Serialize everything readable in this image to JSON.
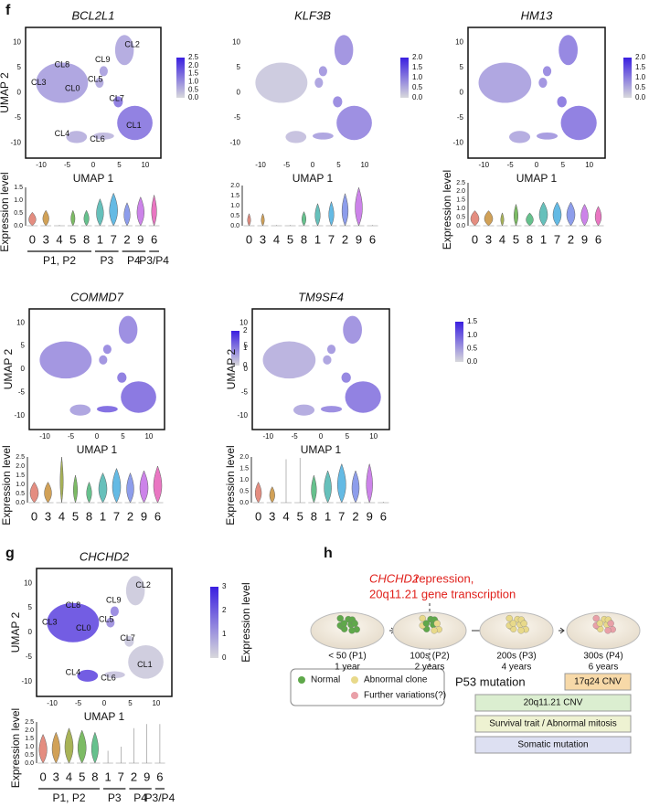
{
  "f": {
    "label": "f",
    "umaps": [
      {
        "gene": "BCL2L1",
        "xlabel": "UMAP 1",
        "ylabel": "UMAP 2",
        "xticks": [
          "-10",
          "-5",
          "0",
          "5",
          "10"
        ],
        "yticks": [
          "10",
          "5",
          "0",
          "-5",
          "-10"
        ],
        "colorbar": [
          "2.5",
          "2.0",
          "1.5",
          "1.0",
          "0.5",
          "0.0"
        ],
        "clusters": [
          "CL2",
          "CL8",
          "CL9",
          "CL3",
          "CL5",
          "CL0",
          "CL7",
          "CL4",
          "CL6",
          "CL1"
        ]
      },
      {
        "gene": "KLF3B",
        "xlabel": "UMAP 1",
        "xticks": [
          "-10",
          "-5",
          "0",
          "5",
          "10"
        ],
        "yticks": [
          "10",
          "5",
          "0",
          "-5",
          "-10"
        ],
        "colorbar": [
          "2.0",
          "1.5",
          "1.0",
          "0.5",
          "0.0"
        ]
      },
      {
        "gene": "HM13",
        "xlabel": "UMAP 1",
        "xticks": [
          "-10",
          "-5",
          "0",
          "5",
          "10"
        ],
        "yticks": [
          "10",
          "5",
          "0",
          "-5",
          "-10"
        ],
        "colorbar": [
          "2.0",
          "1.5",
          "1.0",
          "0.5",
          "0.0"
        ]
      },
      {
        "gene": "COMMD7",
        "xlabel": "UMAP 1",
        "ylabel": "UMAP 2",
        "xticks": [
          "-10",
          "-5",
          "0",
          "5",
          "10"
        ],
        "yticks": [
          "10",
          "5",
          "0",
          "-5",
          "-10"
        ],
        "colorbar": [
          "2",
          "1",
          "0"
        ]
      },
      {
        "gene": "TM9SF4",
        "xlabel": "UMAP 1",
        "ylabel": "UMAP 2",
        "xticks": [
          "-10",
          "-5",
          "0",
          "5",
          "10"
        ],
        "yticks": [
          "10",
          "5",
          "0",
          "-5",
          "-10"
        ],
        "colorbar": [
          "1.5",
          "1.0",
          "0.5",
          "0.0"
        ]
      }
    ],
    "violins": [
      {
        "ylabel": "Expression level",
        "yticks": [
          "1.5",
          "1.0",
          "0.5",
          "0.0"
        ],
        "categories": [
          "0",
          "3",
          "4",
          "5",
          "8",
          "1",
          "7",
          "2",
          "9",
          "6"
        ],
        "groups": [
          "P1, P2",
          "P3",
          "P4",
          "P3/P4"
        ]
      },
      {
        "yticks": [
          "2.0",
          "1.5",
          "1.0",
          "0.5",
          "0.0"
        ],
        "categories": [
          "0",
          "3",
          "4",
          "5",
          "8",
          "1",
          "7",
          "2",
          "9",
          "6"
        ]
      },
      {
        "ylabel": "Expression level",
        "yticks": [
          "2.5",
          "2.0",
          "1.5",
          "1.0",
          "0.5",
          "0.0"
        ],
        "categories": [
          "0",
          "3",
          "4",
          "5",
          "8",
          "1",
          "7",
          "2",
          "9",
          "6"
        ]
      },
      {
        "ylabel": "Expression level",
        "yticks": [
          "2.5",
          "2.0",
          "1.5",
          "1.0",
          "0.5",
          "0.0"
        ],
        "categories": [
          "0",
          "3",
          "4",
          "5",
          "8",
          "1",
          "7",
          "2",
          "9",
          "6"
        ]
      },
      {
        "ylabel": "Expression level",
        "yticks": [
          "2.0",
          "1.5",
          "1.0",
          "0.5",
          "0.0"
        ],
        "categories": [
          "0",
          "3",
          "4",
          "5",
          "8",
          "1",
          "7",
          "2",
          "9",
          "6"
        ]
      }
    ]
  },
  "g": {
    "label": "g",
    "umap": {
      "gene": "CHCHD2",
      "xlabel": "UMAP 1",
      "ylabel": "UMAP 2",
      "xticks": [
        "-10",
        "-5",
        "0",
        "5",
        "10"
      ],
      "yticks": [
        "10",
        "5",
        "0",
        "-5",
        "-10"
      ],
      "colorbar": [
        "3",
        "2",
        "1",
        "0"
      ],
      "colorbar_label": "Expression level",
      "clusters": [
        "CL2",
        "CL8",
        "CL9",
        "CL3",
        "CL5",
        "CL0",
        "CL7",
        "CL4",
        "CL6",
        "CL1"
      ]
    },
    "violin": {
      "ylabel": "Expression level",
      "yticks": [
        "2.5",
        "2.0",
        "1.5",
        "1.0",
        "0.5",
        "0.0"
      ],
      "categories": [
        "0",
        "3",
        "4",
        "5",
        "8",
        "1",
        "7",
        "2",
        "9",
        "6"
      ],
      "groups": [
        "P1, P2",
        "P3",
        "P4",
        "P3/P4"
      ]
    }
  },
  "h": {
    "label": "h",
    "heading": {
      "gene": "CHCHD2",
      "line1": " repression,",
      "line2": "20q11.21 gene transcription"
    },
    "stages": [
      {
        "passage": "< 50 (P1)",
        "time": "1 year"
      },
      {
        "passage": "100s (P2)",
        "time": "2 years"
      },
      {
        "passage": "200s (P3)",
        "time": "4 years"
      },
      {
        "passage": "300s (P4)",
        "time": "6 years"
      }
    ],
    "legend": [
      "Normal",
      "Abnormal clone",
      "Further variations(?)"
    ],
    "mutation": "P53 mutation",
    "bars": [
      "17q24 CNV",
      "20q11.21 CNV",
      "Survival trait / Abnormal mitosis",
      "Somatic mutation"
    ]
  }
}
